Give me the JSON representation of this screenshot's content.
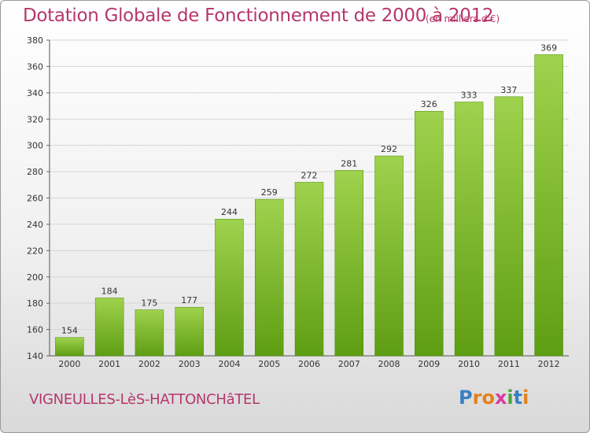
{
  "title": "Dotation Globale de Fonctionnement de 2000 à 2012",
  "unit_note": "(en milliers d'€)",
  "commune": "VIGNEULLES-LèS-HATTONCHâTEL",
  "logo": {
    "text": "Proxiti",
    "letters": [
      "P",
      "r",
      "o",
      "x",
      "i",
      "t",
      "i"
    ],
    "colors": [
      "#3a7fc4",
      "#e2821e",
      "#e2821e",
      "#d93aa0",
      "#4aa33a",
      "#3a7fc4",
      "#e2821e"
    ]
  },
  "colors": {
    "title": "#b5376a",
    "bar_top": "#9fd24e",
    "bar_bottom": "#5e9e12"
  },
  "chart_data": {
    "type": "bar",
    "title": "Dotation Globale de Fonctionnement de 2000 à 2012",
    "subtitle": "(en milliers d'€)",
    "categories": [
      "2000",
      "2001",
      "2002",
      "2003",
      "2004",
      "2005",
      "2006",
      "2007",
      "2008",
      "2009",
      "2010",
      "2011",
      "2012"
    ],
    "values": [
      154,
      184,
      175,
      177,
      244,
      259,
      272,
      281,
      292,
      326,
      333,
      337,
      369
    ],
    "ylim": [
      140,
      380
    ],
    "yticks": [
      140,
      160,
      180,
      200,
      220,
      240,
      260,
      280,
      300,
      320,
      340,
      360,
      380
    ],
    "grid": true
  }
}
